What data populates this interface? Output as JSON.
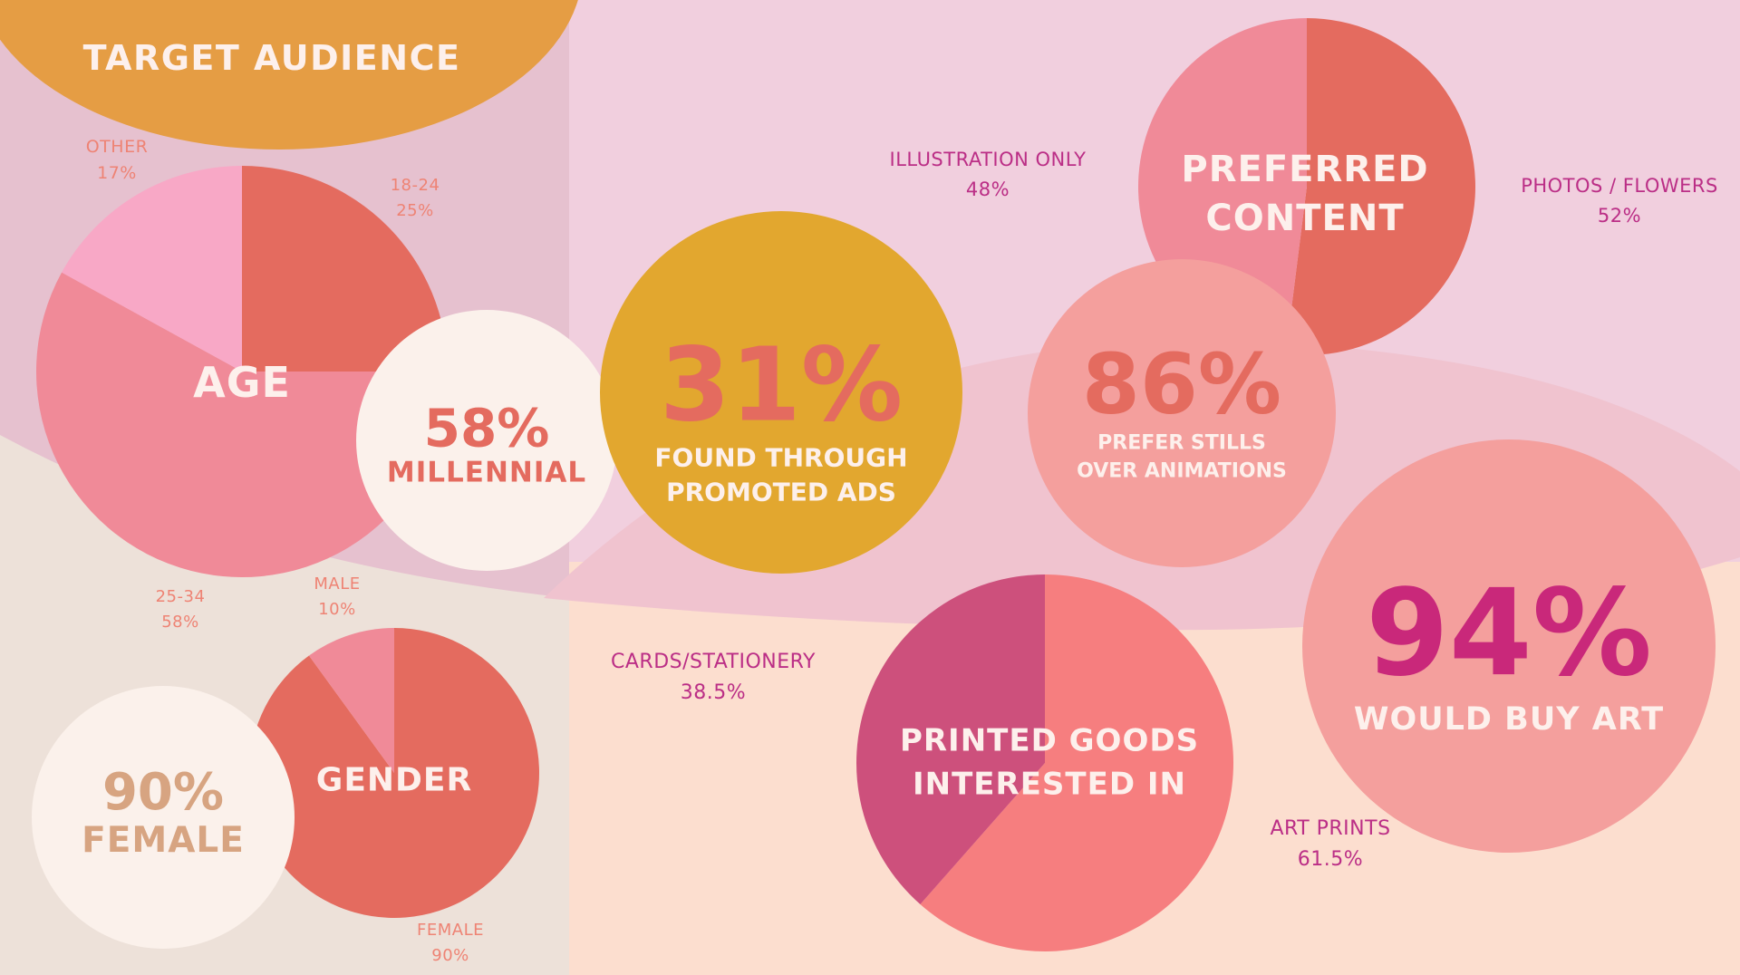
{
  "title": "TARGET AUDIENCE",
  "colors": {
    "bg_pink": "#f1cfde",
    "bg_mauve": "#e6c1cf",
    "bg_beige": "#ede1d9",
    "bg_peach": "#fcdecf",
    "wave_pink": "#f0c3cf",
    "orange": "#e59d44",
    "gold": "#e2a72f",
    "coral": "#e46b5f",
    "pink": "#f08a98",
    "light_pink": "#f8a8c6",
    "salmon": "#f49f9d",
    "rose": "#f67e7f",
    "magenta_slice": "#cd507c",
    "cream": "#fbf1eb",
    "label_coral": "#ee8374",
    "label_magenta": "#bb2e86",
    "tan": "#d7a481"
  },
  "stats": {
    "millennial": {
      "value": "58%",
      "label": "MILLENNIAL"
    },
    "female": {
      "value": "90%",
      "label": "FEMALE"
    },
    "promoted": {
      "value": "31%",
      "line1": "FOUND THROUGH",
      "line2": "PROMOTED ADS"
    },
    "stills": {
      "value": "86%",
      "line1": "PREFER STILLS",
      "line2": "OVER ANIMATIONS"
    },
    "buy_art": {
      "value": "94%",
      "label": "WOULD BUY ART"
    }
  },
  "chart_data": [
    {
      "type": "pie",
      "title": "AGE",
      "categories": [
        "18-24",
        "25-34",
        "OTHER"
      ],
      "values": [
        25,
        58,
        17
      ],
      "labels": [
        "25%",
        "58%",
        "17%"
      ]
    },
    {
      "type": "pie",
      "title": "GENDER",
      "categories": [
        "FEMALE",
        "MALE"
      ],
      "values": [
        90,
        10
      ],
      "labels": [
        "90%",
        "10%"
      ]
    },
    {
      "type": "pie",
      "title_lines": [
        "PREFERRED",
        "CONTENT"
      ],
      "categories": [
        "PHOTOS / FLOWERS",
        "ILLUSTRATION ONLY"
      ],
      "values": [
        52,
        48
      ],
      "labels": [
        "52%",
        "48%"
      ]
    },
    {
      "type": "pie",
      "title_lines": [
        "PRINTED GOODS",
        "INTERESTED IN"
      ],
      "categories": [
        "ART PRINTS",
        "CARDS/STATIONERY"
      ],
      "values": [
        61.5,
        38.5
      ],
      "labels": [
        "61.5%",
        "38.5%"
      ]
    }
  ]
}
